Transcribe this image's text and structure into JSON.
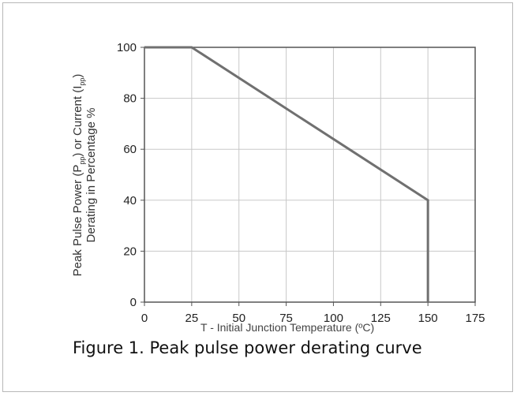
{
  "chart_data": {
    "type": "line",
    "x": [
      0,
      25,
      150,
      150
    ],
    "series": [
      {
        "values": [
          100,
          100,
          40,
          0
        ]
      }
    ],
    "xlim": [
      0,
      175
    ],
    "ylim": [
      0,
      100
    ],
    "xticks": [
      "0",
      "25",
      "50",
      "75",
      "100",
      "125",
      "150",
      "175"
    ],
    "yticks": [
      "0",
      "20",
      "40",
      "60",
      "80",
      "100"
    ],
    "ylabel_line1_a": "Peak Pulse Power (P",
    "ylabel_line1_sub1": "pp",
    "ylabel_line1_b": ") or Current (I",
    "ylabel_line1_sub2": "pp",
    "ylabel_line1_c": ")",
    "ylabel_line2": "Derating in Percentage %",
    "xlabel_prefix": "T",
    "xlabel_text": " - Initial Junction Temperature (ºC)",
    "grid": true,
    "line_color": "#707070",
    "grid_color": "#c8c8c8"
  },
  "caption": "Figure 1. Peak pulse power derating curve"
}
